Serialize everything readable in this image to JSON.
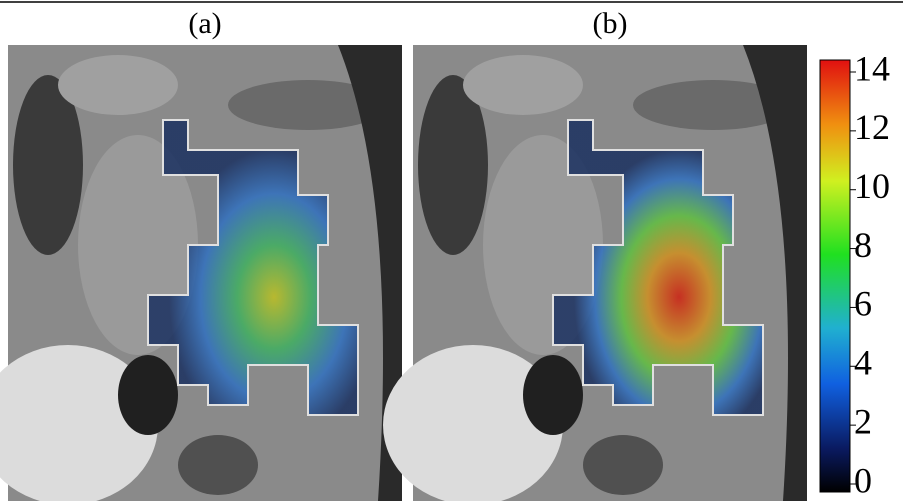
{
  "panels": [
    {
      "label": "(a)"
    },
    {
      "label": "(b)"
    }
  ],
  "colorbar": {
    "lim": [
      0,
      14
    ],
    "ticks": [
      0,
      2,
      4,
      6,
      8,
      10,
      12,
      14
    ]
  }
}
